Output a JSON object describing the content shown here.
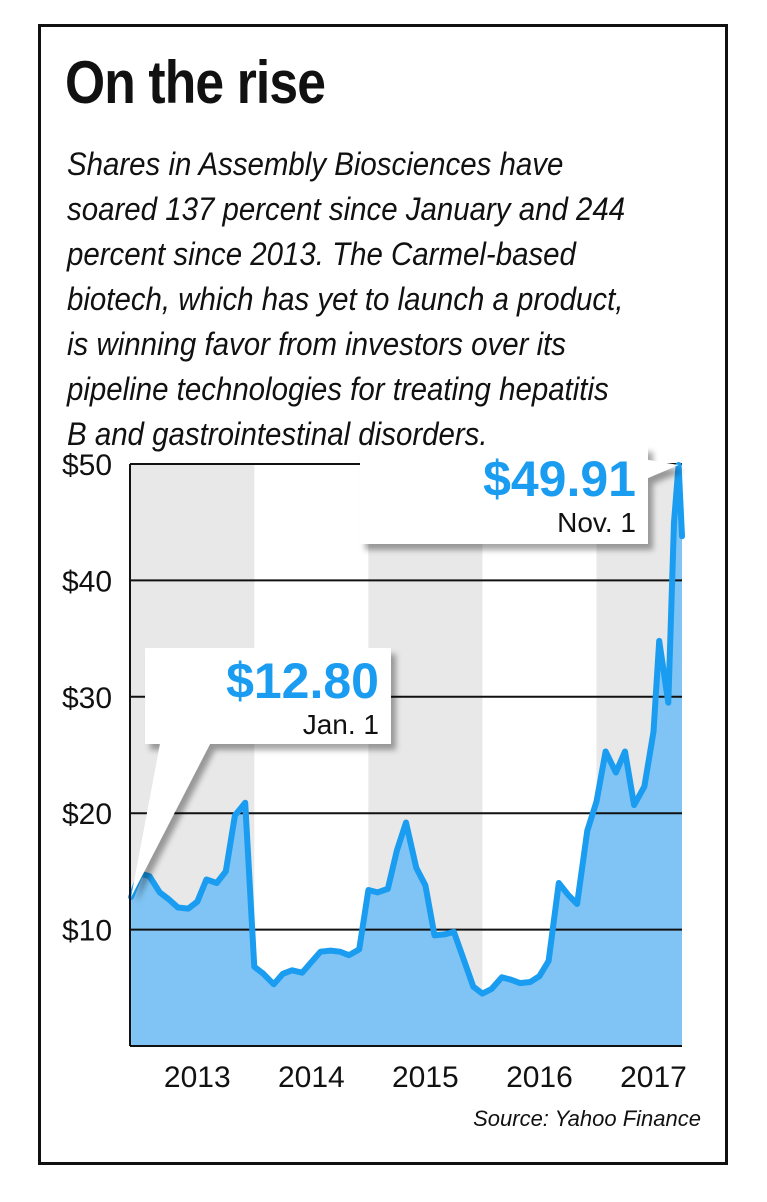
{
  "title": "On the rise",
  "description_lines": [
    "Shares in Assembly Biosciences have",
    "soared 137 percent since January and 244",
    "percent since 2013. The Carmel-based",
    "biotech, which has yet to launch a product,",
    "is winning favor from investors over its",
    "pipeline technologies for treating hepatitis",
    "B and gastrointestinal disorders."
  ],
  "source": "Source: Yahoo Finance",
  "colors": {
    "line": "#1a9cf0",
    "area": "#7fc4f4",
    "band": "#e8e8e8",
    "grid": "#111111"
  },
  "chart_data": {
    "type": "area",
    "title": "On the rise",
    "xlabel": "",
    "ylabel": "",
    "xlim": [
      2012.91,
      2017.75
    ],
    "ylim": [
      0,
      50
    ],
    "grid": true,
    "y_ticks": [
      {
        "value": 10,
        "label": "$10"
      },
      {
        "value": 20,
        "label": "$20"
      },
      {
        "value": 30,
        "label": "$30"
      },
      {
        "value": 40,
        "label": "$40"
      },
      {
        "value": 50,
        "label": "$50"
      }
    ],
    "x_ticks": [
      {
        "value": 2013.5,
        "label": "2013"
      },
      {
        "value": 2014.5,
        "label": "2014"
      },
      {
        "value": 2015.5,
        "label": "2015"
      },
      {
        "value": 2016.5,
        "label": "2016"
      },
      {
        "value": 2017.5,
        "label": "2017"
      }
    ],
    "shaded_years": [
      [
        2012.91,
        2014.0
      ],
      [
        2015.0,
        2016.0
      ],
      [
        2017.0,
        2017.75
      ]
    ],
    "series": [
      {
        "points": [
          [
            2012.92,
            12.8
          ],
          [
            2013.0,
            14.8
          ],
          [
            2013.08,
            14.6
          ],
          [
            2013.17,
            13.2
          ],
          [
            2013.25,
            12.6
          ],
          [
            2013.33,
            11.9
          ],
          [
            2013.42,
            11.8
          ],
          [
            2013.5,
            12.4
          ],
          [
            2013.58,
            14.3
          ],
          [
            2013.67,
            14.0
          ],
          [
            2013.75,
            15.0
          ],
          [
            2013.83,
            19.8
          ],
          [
            2013.92,
            20.9
          ],
          [
            2014.0,
            6.8
          ],
          [
            2014.08,
            6.2
          ],
          [
            2014.17,
            5.3
          ],
          [
            2014.25,
            6.2
          ],
          [
            2014.33,
            6.5
          ],
          [
            2014.42,
            6.3
          ],
          [
            2014.5,
            7.2
          ],
          [
            2014.58,
            8.1
          ],
          [
            2014.67,
            8.2
          ],
          [
            2014.75,
            8.1
          ],
          [
            2014.83,
            7.8
          ],
          [
            2014.92,
            8.3
          ],
          [
            2015.0,
            13.4
          ],
          [
            2015.08,
            13.2
          ],
          [
            2015.17,
            13.5
          ],
          [
            2015.25,
            16.8
          ],
          [
            2015.33,
            19.2
          ],
          [
            2015.42,
            15.3
          ],
          [
            2015.5,
            13.8
          ],
          [
            2015.58,
            9.5
          ],
          [
            2015.67,
            9.6
          ],
          [
            2015.75,
            9.8
          ],
          [
            2015.83,
            7.6
          ],
          [
            2015.92,
            5.1
          ],
          [
            2016.0,
            4.5
          ],
          [
            2016.08,
            4.9
          ],
          [
            2016.17,
            5.9
          ],
          [
            2016.25,
            5.7
          ],
          [
            2016.33,
            5.4
          ],
          [
            2016.42,
            5.5
          ],
          [
            2016.5,
            6.0
          ],
          [
            2016.58,
            7.3
          ],
          [
            2016.67,
            14.0
          ],
          [
            2016.75,
            13.0
          ],
          [
            2016.83,
            12.2
          ],
          [
            2016.92,
            18.5
          ],
          [
            2017.0,
            21.0
          ],
          [
            2017.08,
            25.3
          ],
          [
            2017.17,
            23.5
          ],
          [
            2017.25,
            25.3
          ],
          [
            2017.33,
            20.7
          ],
          [
            2017.42,
            22.3
          ],
          [
            2017.5,
            27.0
          ],
          [
            2017.55,
            34.8
          ],
          [
            2017.63,
            29.5
          ],
          [
            2017.68,
            45.0
          ],
          [
            2017.72,
            49.91
          ],
          [
            2017.75,
            43.8
          ]
        ]
      }
    ],
    "annotations": [
      {
        "value_label": "$12.80",
        "date_label": "Jan. 1",
        "x": 2012.92,
        "y": 12.8
      },
      {
        "value_label": "$49.91",
        "date_label": "Nov. 1",
        "x": 2017.72,
        "y": 49.91
      }
    ]
  }
}
